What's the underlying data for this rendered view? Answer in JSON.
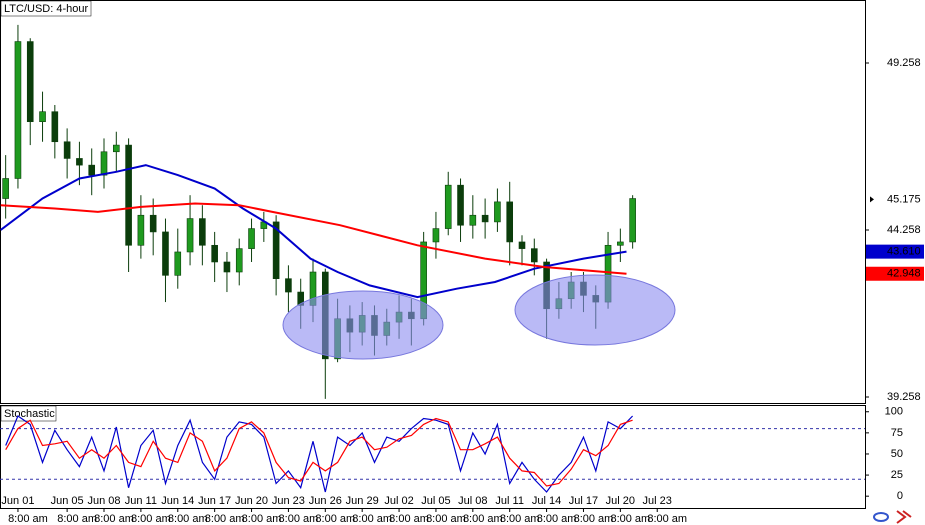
{
  "chart_data": [
    {
      "type": "candlestick",
      "title": "LTC/USD: 4-hour",
      "x": [
        -1,
        0,
        1,
        2,
        3,
        4,
        5,
        6,
        7,
        8,
        9,
        10,
        11,
        12,
        13,
        14,
        15,
        16,
        17,
        18,
        19,
        20,
        21,
        22,
        23,
        24,
        25,
        26,
        27,
        28,
        29,
        30,
        31,
        32,
        33,
        34,
        35,
        36,
        37,
        38,
        39,
        40,
        41,
        42,
        43,
        44,
        45,
        46,
        47,
        48,
        49,
        50
      ],
      "open": [
        45.2,
        45.8,
        49.9,
        47.5,
        47.8,
        46.9,
        46.4,
        46.2,
        45.9,
        46.6,
        46.8,
        43.8,
        44.7,
        44.2,
        42.9,
        43.6,
        44.6,
        43.8,
        43.3,
        43.0,
        43.7,
        44.3,
        44.5,
        42.8,
        42.4,
        42.0,
        43.0,
        40.4,
        41.6,
        41.2,
        41.7,
        41.1,
        41.5,
        41.8,
        41.6,
        43.9,
        44.3,
        45.6,
        44.4,
        44.7,
        44.5,
        45.1,
        43.9,
        43.7,
        43.3,
        41.9,
        42.2,
        42.7,
        42.3,
        42.1,
        43.8,
        43.9
      ],
      "high": [
        46.5,
        50.4,
        50.0,
        48.4,
        48.0,
        47.3,
        46.9,
        46.7,
        47.0,
        47.2,
        47.0,
        45.3,
        45.2,
        44.6,
        44.3,
        45.3,
        45.0,
        44.2,
        43.6,
        44.0,
        44.6,
        44.8,
        44.7,
        43.2,
        42.8,
        43.4,
        43.1,
        42.2,
        42.0,
        42.1,
        42.0,
        41.9,
        42.3,
        42.2,
        44.2,
        44.8,
        46.0,
        45.8,
        45.3,
        45.2,
        45.5,
        45.7,
        44.1,
        44.0,
        43.4,
        42.7,
        43.0,
        43.0,
        42.6,
        44.2,
        44.3,
        45.3
      ],
      "low": [
        44.6,
        45.5,
        46.8,
        46.9,
        46.4,
        45.8,
        45.6,
        45.3,
        45.5,
        46.0,
        43.0,
        43.4,
        43.5,
        42.1,
        42.5,
        43.2,
        43.2,
        42.7,
        42.4,
        42.6,
        43.3,
        43.9,
        42.3,
        41.8,
        41.3,
        41.5,
        39.2,
        40.3,
        40.6,
        40.8,
        40.5,
        40.8,
        41.0,
        40.8,
        41.4,
        43.4,
        44.1,
        43.9,
        44.0,
        44.0,
        44.2,
        43.2,
        43.2,
        42.9,
        41.0,
        41.6,
        41.9,
        41.8,
        41.3,
        41.9,
        43.3,
        43.7
      ],
      "close": [
        45.8,
        49.9,
        47.5,
        47.8,
        46.9,
        46.4,
        46.2,
        45.9,
        46.6,
        46.8,
        43.8,
        44.7,
        44.2,
        42.9,
        43.6,
        44.6,
        43.8,
        43.3,
        43.0,
        43.7,
        44.3,
        44.5,
        42.8,
        42.4,
        42.0,
        43.0,
        40.4,
        41.6,
        41.2,
        41.7,
        41.1,
        41.5,
        41.8,
        41.6,
        43.9,
        44.3,
        45.6,
        44.4,
        44.7,
        44.5,
        45.1,
        43.9,
        43.7,
        43.3,
        41.9,
        42.2,
        42.7,
        42.3,
        42.1,
        43.8,
        43.9,
        45.2
      ],
      "up_color": "#1f9a1f",
      "down_color": "#0b3d0b",
      "series": [
        {
          "color": "#0000cc",
          "x": [
            -1.4,
            2,
            5,
            8,
            10.4,
            13,
            16,
            18.3,
            21,
            23.8,
            26,
            28.6,
            32.5,
            35.7,
            38.8,
            42,
            46,
            49.5
          ],
          "values": [
            44.26,
            45.2,
            45.8,
            46.0,
            46.2,
            45.9,
            45.5,
            44.9,
            44.3,
            43.4,
            43.0,
            42.6,
            42.25,
            42.5,
            42.7,
            43.1,
            43.4,
            43.61
          ]
        },
        {
          "color": "#ff0000",
          "x": [
            -1.4,
            3,
            6.5,
            10,
            14.4,
            18,
            20.7,
            26.2,
            32.5,
            38,
            42.8,
            49.5
          ],
          "values": [
            45.0,
            44.9,
            44.8,
            44.95,
            45.05,
            45.0,
            44.8,
            44.4,
            43.8,
            43.4,
            43.15,
            42.95
          ]
        }
      ],
      "xlim": [
        -1.46,
        68.9
      ],
      "ylim": [
        39.078,
        51.144
      ],
      "yticks": [
        39.258,
        44.258,
        49.258
      ],
      "price_tags": [
        {
          "value": 45.175,
          "color": "#000000"
        },
        {
          "value": 43.61,
          "label": "43.610",
          "color": "#0000cc"
        },
        {
          "value": 42.948,
          "color": "#ff0000"
        }
      ],
      "xticks": [
        {
          "value": 0,
          "label": "Jun 01"
        },
        {
          "value": 4,
          "label": "Jun 05"
        },
        {
          "value": 7,
          "label": "Jun 08"
        },
        {
          "value": 10,
          "label": "Jun 11"
        },
        {
          "value": 13,
          "label": "Jun 14"
        },
        {
          "value": 16,
          "label": "Jun 17"
        },
        {
          "value": 19,
          "label": "Jun 20"
        },
        {
          "value": 22,
          "label": "Jun 23"
        },
        {
          "value": 25,
          "label": "Jun 26"
        },
        {
          "value": 28,
          "label": "Jun 29"
        },
        {
          "value": 31,
          "label": "Jul 02"
        },
        {
          "value": 34,
          "label": "Jul 05"
        },
        {
          "value": 37,
          "label": "Jul 08"
        },
        {
          "value": 40,
          "label": "Jul 11"
        },
        {
          "value": 43,
          "label": "Jul 14"
        },
        {
          "value": 46,
          "label": "Jul 17"
        },
        {
          "value": 49,
          "label": "Jul 20"
        },
        {
          "value": 52,
          "label": "Jul 23"
        }
      ],
      "tick_time": "8:00 am"
    },
    {
      "type": "line",
      "title": "Stochastic",
      "x": [
        -1,
        0,
        1,
        2,
        3,
        4,
        5,
        6,
        7,
        8,
        9,
        10,
        11,
        12,
        13,
        14,
        15,
        16,
        17,
        18,
        19,
        20,
        21,
        22,
        23,
        24,
        25,
        26,
        27,
        28,
        29,
        30,
        31,
        32,
        33,
        34,
        35,
        36,
        37,
        38,
        39,
        40,
        41,
        42,
        43,
        44,
        45,
        46,
        47,
        48,
        49,
        50
      ],
      "series": [
        {
          "color": "#0000cc",
          "values": [
            60,
            95,
            85,
            40,
            78,
            55,
            35,
            70,
            30,
            82,
            10,
            60,
            78,
            15,
            60,
            90,
            40,
            20,
            70,
            88,
            85,
            70,
            15,
            30,
            10,
            65,
            5,
            70,
            60,
            75,
            40,
            70,
            65,
            80,
            92,
            90,
            85,
            30,
            75,
            50,
            85,
            15,
            40,
            20,
            5,
            25,
            40,
            70,
            30,
            88,
            80,
            95
          ]
        },
        {
          "color": "#ff0000",
          "values": [
            55,
            80,
            90,
            60,
            62,
            65,
            45,
            55,
            45,
            60,
            40,
            35,
            65,
            45,
            40,
            75,
            65,
            30,
            45,
            80,
            88,
            75,
            40,
            22,
            18,
            40,
            30,
            40,
            65,
            70,
            55,
            58,
            68,
            72,
            85,
            92,
            88,
            55,
            55,
            62,
            70,
            45,
            30,
            28,
            12,
            15,
            32,
            55,
            48,
            60,
            85,
            90
          ]
        }
      ],
      "xlim": [
        -1.46,
        68.9
      ],
      "ylim": [
        -14,
        108
      ],
      "yticks": [
        0,
        25,
        50,
        75,
        100
      ],
      "levels": [
        80,
        20
      ]
    }
  ]
}
